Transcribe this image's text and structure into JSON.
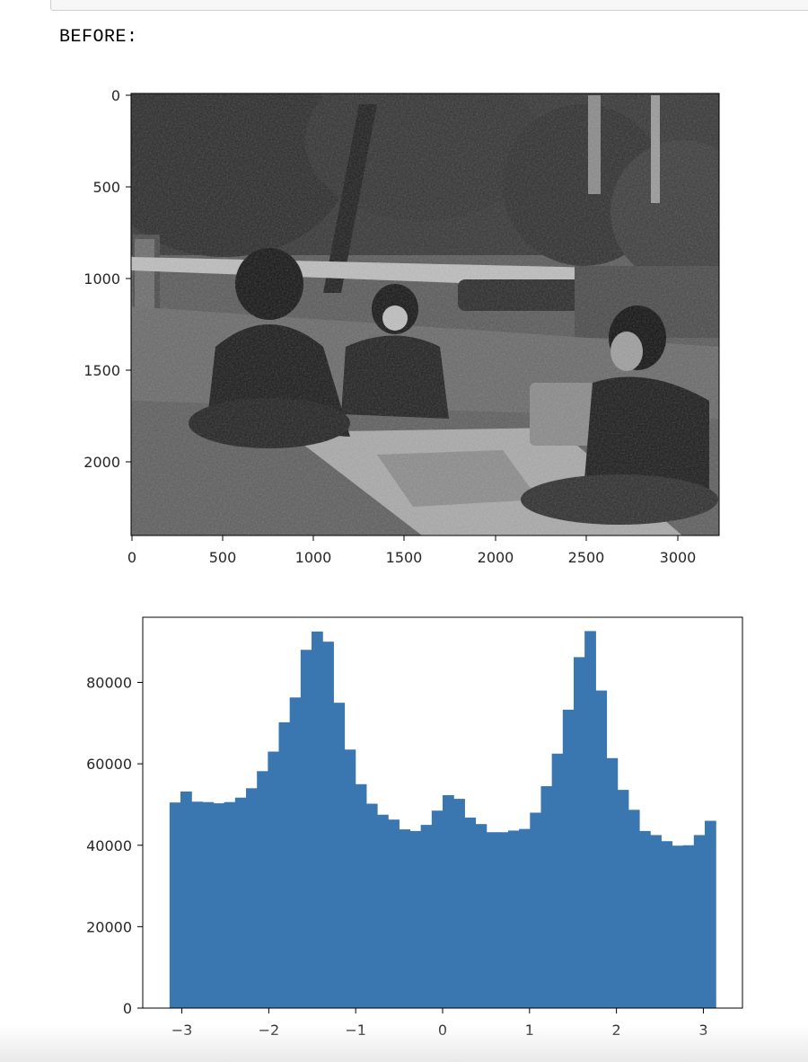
{
  "notebook": {
    "output_label": "BEFORE:"
  },
  "image_plot": {
    "y_ticks": [
      "0",
      "500",
      "1000",
      "1500",
      "2000"
    ],
    "x_ticks": [
      "0",
      "500",
      "1000",
      "1500",
      "2000",
      "2500",
      "3000"
    ],
    "image_content": "grayscale-photo"
  },
  "chart_data": {
    "type": "bar",
    "title": "",
    "xlabel": "",
    "ylabel": "",
    "bar_color": "#3a76af",
    "xlim": [
      -3.45,
      3.45
    ],
    "ylim": [
      0,
      96000
    ],
    "x_ticks": [
      -3,
      -2,
      -1,
      0,
      1,
      2,
      3
    ],
    "x_tick_labels": [
      "−3",
      "−2",
      "−1",
      "0",
      "1",
      "2",
      "3"
    ],
    "y_ticks": [
      0,
      20000,
      40000,
      60000,
      80000
    ],
    "y_tick_labels": [
      "0",
      "20000",
      "40000",
      "60000",
      "80000"
    ],
    "bin_range": [
      -3.14159,
      3.14159
    ],
    "bins": 50,
    "values": [
      50500,
      53200,
      50700,
      50600,
      50300,
      50600,
      51700,
      54000,
      58200,
      63000,
      70200,
      76300,
      88000,
      92500,
      90000,
      75000,
      63500,
      55000,
      50200,
      47500,
      46300,
      43900,
      43500,
      45000,
      48500,
      52300,
      51400,
      46800,
      45200,
      43200,
      43200,
      43600,
      44000,
      48000,
      54500,
      62500,
      73300,
      86200,
      92600,
      78000,
      61400,
      53600,
      48700,
      43500,
      42500,
      41000,
      39900,
      40000,
      42500,
      46000
    ]
  }
}
